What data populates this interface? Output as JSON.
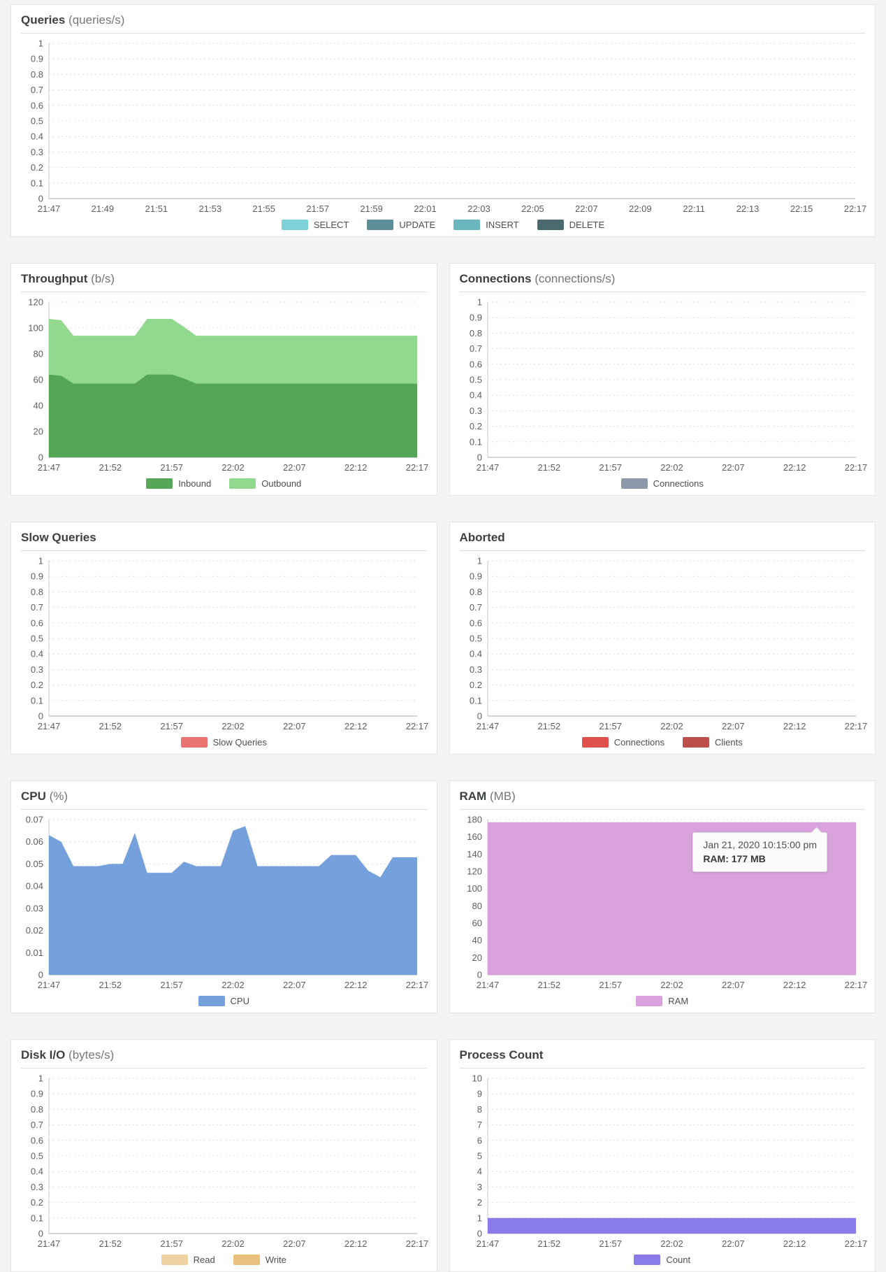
{
  "chart_data": [
    {
      "id": "queries",
      "type": "area",
      "title": "Queries",
      "unit": "(queries/s)",
      "ylim": [
        0,
        1
      ],
      "yticks": [
        "1",
        "0.9",
        "0.8",
        "0.7",
        "0.6",
        "0.5",
        "0.4",
        "0.3",
        "0.2",
        "0.1",
        "0"
      ],
      "xticks": [
        "21:47",
        "21:49",
        "21:51",
        "21:53",
        "21:55",
        "21:57",
        "21:59",
        "22:01",
        "22:03",
        "22:05",
        "22:07",
        "22:09",
        "22:11",
        "22:13",
        "22:15",
        "22:17"
      ],
      "series": [],
      "legend": [
        {
          "label": "SELECT",
          "color": "#7ed1d9"
        },
        {
          "label": "UPDATE",
          "color": "#5e8f98"
        },
        {
          "label": "INSERT",
          "color": "#69b6bf"
        },
        {
          "label": "DELETE",
          "color": "#4b6a6f"
        }
      ]
    },
    {
      "id": "throughput",
      "type": "area",
      "title": "Throughput",
      "unit": "(b/s)",
      "ylim": [
        0,
        120
      ],
      "yticks": [
        "120",
        "100",
        "80",
        "60",
        "40",
        "20",
        "0"
      ],
      "xticks": [
        "21:47",
        "21:52",
        "21:57",
        "22:02",
        "22:07",
        "22:12",
        "22:17"
      ],
      "series": [
        {
          "name": "Outbound",
          "color": "#90d98e",
          "values": [
            107,
            106,
            94,
            94,
            94,
            94,
            94,
            94,
            107,
            107,
            107,
            101,
            94,
            94,
            94,
            94,
            94,
            94,
            94,
            94,
            94,
            94,
            94,
            94,
            94,
            94,
            94,
            94,
            94,
            94,
            94
          ]
        },
        {
          "name": "Inbound",
          "color": "#55a556",
          "values": [
            64,
            63,
            57,
            57,
            57,
            57,
            57,
            57,
            64,
            64,
            64,
            61,
            57,
            57,
            57,
            57,
            57,
            57,
            57,
            57,
            57,
            57,
            57,
            57,
            57,
            57,
            57,
            57,
            57,
            57,
            57
          ]
        }
      ],
      "legend": [
        {
          "label": "Inbound",
          "color": "#58a758"
        },
        {
          "label": "Outbound",
          "color": "#90d98e"
        }
      ]
    },
    {
      "id": "connections",
      "type": "area",
      "title": "Connections",
      "unit": "(connections/s)",
      "ylim": [
        0,
        1
      ],
      "yticks": [
        "1",
        "0.9",
        "0.8",
        "0.7",
        "0.6",
        "0.5",
        "0.4",
        "0.3",
        "0.2",
        "0.1",
        "0"
      ],
      "xticks": [
        "21:47",
        "21:52",
        "21:57",
        "22:02",
        "22:07",
        "22:12",
        "22:17"
      ],
      "series": [],
      "legend": [
        {
          "label": "Connections",
          "color": "#8d99ab"
        }
      ]
    },
    {
      "id": "slow-queries",
      "type": "area",
      "title": "Slow Queries",
      "unit": "",
      "ylim": [
        0,
        1
      ],
      "yticks": [
        "1",
        "0.9",
        "0.8",
        "0.7",
        "0.6",
        "0.5",
        "0.4",
        "0.3",
        "0.2",
        "0.1",
        "0"
      ],
      "xticks": [
        "21:47",
        "21:52",
        "21:57",
        "22:02",
        "22:07",
        "22:12",
        "22:17"
      ],
      "series": [],
      "legend": [
        {
          "label": "Slow Queries",
          "color": "#ea7470"
        }
      ]
    },
    {
      "id": "aborted",
      "type": "area",
      "title": "Aborted",
      "unit": "",
      "ylim": [
        0,
        1
      ],
      "yticks": [
        "1",
        "0.9",
        "0.8",
        "0.7",
        "0.6",
        "0.5",
        "0.4",
        "0.3",
        "0.2",
        "0.1",
        "0"
      ],
      "xticks": [
        "21:47",
        "21:52",
        "21:57",
        "22:02",
        "22:07",
        "22:12",
        "22:17"
      ],
      "series": [],
      "legend": [
        {
          "label": "Connections",
          "color": "#e0514e"
        },
        {
          "label": "Clients",
          "color": "#bd4f4b"
        }
      ]
    },
    {
      "id": "cpu",
      "type": "area",
      "title": "CPU",
      "unit": "(%)",
      "ylim": [
        0,
        0.07
      ],
      "yticks": [
        "0.07",
        "0.06",
        "0.05",
        "0.04",
        "0.03",
        "0.02",
        "0.01",
        "0"
      ],
      "xticks": [
        "21:47",
        "21:52",
        "21:57",
        "22:02",
        "22:07",
        "22:12",
        "22:17"
      ],
      "series": [
        {
          "name": "CPU",
          "color": "#74a0db",
          "values": [
            0.063,
            0.06,
            0.049,
            0.049,
            0.049,
            0.05,
            0.05,
            0.064,
            0.046,
            0.046,
            0.046,
            0.051,
            0.049,
            0.049,
            0.049,
            0.065,
            0.067,
            0.049,
            0.049,
            0.049,
            0.049,
            0.049,
            0.049,
            0.054,
            0.054,
            0.054,
            0.047,
            0.044,
            0.053,
            0.053,
            0.053
          ]
        }
      ],
      "legend": [
        {
          "label": "CPU",
          "color": "#74a0db"
        }
      ]
    },
    {
      "id": "ram",
      "type": "area",
      "title": "RAM",
      "unit": "(MB)",
      "ylim": [
        0,
        180
      ],
      "yticks": [
        "180",
        "160",
        "140",
        "120",
        "100",
        "80",
        "60",
        "40",
        "20",
        "0"
      ],
      "xticks": [
        "21:47",
        "21:52",
        "21:57",
        "22:02",
        "22:07",
        "22:12",
        "22:17"
      ],
      "series": [
        {
          "name": "RAM",
          "color": "#d9a2de",
          "values": [
            177,
            177,
            177,
            177,
            177,
            177,
            177,
            177,
            177,
            177,
            177,
            177,
            177,
            177,
            177,
            177,
            177,
            177,
            177,
            177,
            177,
            177,
            177,
            177,
            177,
            177,
            177,
            177,
            177,
            177,
            177
          ]
        }
      ],
      "legend": [
        {
          "label": "RAM",
          "color": "#d9a2de"
        }
      ],
      "tooltip": {
        "line1": "Jan 21, 2020 10:15:00 pm",
        "line2": "RAM: 177 MB"
      }
    },
    {
      "id": "disk-io",
      "type": "area",
      "title": "Disk I/O",
      "unit": "(bytes/s)",
      "ylim": [
        0,
        1
      ],
      "yticks": [
        "1",
        "0.9",
        "0.8",
        "0.7",
        "0.6",
        "0.5",
        "0.4",
        "0.3",
        "0.2",
        "0.1",
        "0"
      ],
      "xticks": [
        "21:47",
        "21:52",
        "21:57",
        "22:02",
        "22:07",
        "22:12",
        "22:17"
      ],
      "series": [],
      "legend": [
        {
          "label": "Read",
          "color": "#f0d3a2"
        },
        {
          "label": "Write",
          "color": "#eac07f"
        }
      ]
    },
    {
      "id": "process-count",
      "type": "area",
      "title": "Process Count",
      "unit": "",
      "ylim": [
        0,
        10
      ],
      "yticks": [
        "10",
        "9",
        "8",
        "7",
        "6",
        "5",
        "4",
        "3",
        "2",
        "1",
        "0"
      ],
      "xticks": [
        "21:47",
        "21:52",
        "21:57",
        "22:02",
        "22:07",
        "22:12",
        "22:17"
      ],
      "series": [
        {
          "name": "Count",
          "color": "#8a7ce8",
          "values": [
            1,
            1,
            1,
            1,
            1,
            1,
            1,
            1,
            1,
            1,
            1,
            1,
            1,
            1,
            1,
            1,
            1,
            1,
            1,
            1,
            1,
            1,
            1,
            1,
            1,
            1,
            1,
            1,
            1,
            1,
            1
          ]
        }
      ],
      "legend": [
        {
          "label": "Count",
          "color": "#8a7ce8"
        }
      ]
    }
  ]
}
